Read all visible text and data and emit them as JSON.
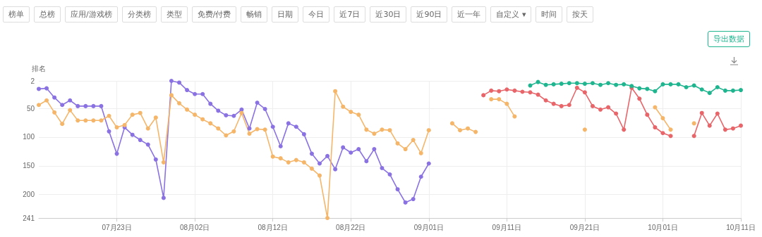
{
  "chart_data": {
    "type": "line",
    "ylabel": "排名",
    "annotations": [
      "榜单",
      "总榜",
      "应用/游戏榜",
      "分类榜",
      "类型",
      "免费/付费",
      "畅销",
      "日期",
      "今日",
      "近7日",
      "近30日",
      "近90日",
      "近一年",
      "自定义 ▾",
      "时间",
      "按天",
      "导出数据"
    ],
    "x": [
      "--07-13",
      "--07-14",
      "--07-15",
      "--07-16",
      "--07-17",
      "--07-18",
      "--07-19",
      "--07-20",
      "--07-21",
      "--07-22",
      "--07-23",
      "--07-24",
      "--07-25",
      "--07-26",
      "--07-27",
      "--07-28",
      "--07-29",
      "--07-30",
      "--07-31",
      "--08-01",
      "--08-02",
      "--08-03",
      "--08-04",
      "--08-05",
      "--08-06",
      "--08-07",
      "--08-08",
      "--08-09",
      "--08-10",
      "--08-11",
      "--08-12",
      "--08-13",
      "--08-14",
      "--08-15",
      "--08-16",
      "--08-17",
      "--08-18",
      "--08-19",
      "--08-20",
      "--08-21",
      "--08-22",
      "--08-23",
      "--08-24",
      "--08-25",
      "--08-26",
      "--08-27",
      "--08-28",
      "--08-29",
      "--08-30",
      "--08-31",
      "--09-01",
      "--09-02",
      "--09-03",
      "--09-04",
      "--09-05",
      "--09-06",
      "--09-07",
      "--09-08",
      "--09-09",
      "--09-10",
      "--09-11",
      "--09-12",
      "--09-13",
      "--09-14",
      "--09-15",
      "--09-16",
      "--09-17",
      "--09-18",
      "--09-19",
      "--09-20",
      "--09-21",
      "--09-22",
      "--09-23",
      "--09-24",
      "--09-25",
      "--09-26",
      "--09-27",
      "--09-28",
      "--09-29",
      "--09-30",
      "--10-01",
      "--10-02",
      "--10-03",
      "--10-04",
      "--10-05",
      "--10-06",
      "--10-07",
      "--10-08",
      "--10-09",
      "--10-10",
      "--10-11"
    ],
    "series": [
      {
        "color": "#8a72e3",
        "values": [
          16,
          15,
          31,
          44,
          36,
          46,
          46,
          46,
          46,
          90,
          129,
          83,
          96,
          105,
          113,
          139,
          206,
          2,
          5,
          18,
          25,
          25,
          42,
          54,
          62,
          63,
          52,
          85,
          40,
          51,
          82,
          116,
          76,
          82,
          95,
          129,
          146,
          133,
          156,
          118,
          127,
          121,
          142,
          121,
          154,
          165,
          191,
          214,
          208,
          169,
          146,
          null,
          null,
          null,
          null,
          null,
          null,
          null,
          null,
          null,
          null,
          null,
          null,
          null,
          null,
          null,
          null,
          null,
          null,
          null,
          null,
          null,
          null,
          null,
          null,
          null,
          null,
          null,
          null,
          null,
          null,
          null,
          null,
          null,
          null,
          null,
          null,
          null,
          null,
          null,
          null
        ]
      },
      {
        "color": "#f5b66a",
        "values": [
          44,
          36,
          57,
          77,
          53,
          71,
          71,
          71,
          71,
          63,
          83,
          79,
          61,
          58,
          85,
          66,
          144,
          27,
          41,
          52,
          61,
          69,
          76,
          85,
          97,
          90,
          58,
          94,
          86,
          87,
          134,
          137,
          144,
          140,
          144,
          155,
          167,
          241,
          20,
          47,
          56,
          61,
          87,
          94,
          87,
          88,
          111,
          121,
          105,
          128,
          88,
          null,
          null,
          76,
          88,
          85,
          91,
          null,
          34,
          34,
          42,
          64,
          null,
          null,
          null,
          null,
          null,
          null,
          null,
          null,
          87,
          null,
          null,
          null,
          null,
          null,
          null,
          null,
          null,
          48,
          67,
          87,
          null,
          null,
          76,
          null,
          null,
          null,
          null,
          null,
          null
        ]
      },
      {
        "color": "#e8656a",
        "values": [
          null,
          null,
          null,
          null,
          null,
          null,
          null,
          null,
          null,
          null,
          null,
          null,
          null,
          null,
          null,
          null,
          null,
          null,
          null,
          null,
          null,
          null,
          null,
          null,
          null,
          null,
          null,
          null,
          null,
          null,
          null,
          null,
          null,
          null,
          null,
          null,
          null,
          null,
          null,
          null,
          null,
          null,
          null,
          null,
          null,
          null,
          null,
          null,
          null,
          null,
          null,
          null,
          null,
          null,
          null,
          null,
          null,
          27,
          19,
          20,
          17,
          19,
          21,
          22,
          26,
          36,
          42,
          46,
          44,
          14,
          22,
          46,
          52,
          48,
          59,
          87,
          14,
          33,
          61,
          83,
          93,
          98,
          null,
          null,
          98,
          58,
          80,
          59,
          87,
          85,
          80
        ]
      },
      {
        "color": "#1fb58f",
        "values": [
          null,
          null,
          null,
          null,
          null,
          null,
          null,
          null,
          null,
          null,
          null,
          null,
          null,
          null,
          null,
          null,
          null,
          null,
          null,
          null,
          null,
          null,
          null,
          null,
          null,
          null,
          null,
          null,
          null,
          null,
          null,
          null,
          null,
          null,
          null,
          null,
          null,
          null,
          null,
          null,
          null,
          null,
          null,
          null,
          null,
          null,
          null,
          null,
          null,
          null,
          null,
          null,
          null,
          null,
          null,
          null,
          null,
          null,
          null,
          null,
          null,
          null,
          null,
          10,
          4,
          9,
          8,
          7,
          6,
          6,
          7,
          6,
          9,
          6,
          9,
          8,
          11,
          15,
          16,
          20,
          8,
          8,
          8,
          13,
          10,
          17,
          23,
          13,
          19,
          19,
          18
        ]
      }
    ],
    "xlim": [
      "--07-13",
      "--10-11"
    ],
    "xticks": [
      {
        "value": "--07-23",
        "label": "07月23日"
      },
      {
        "value": "--08-02",
        "label": "08月02日"
      },
      {
        "value": "--08-12",
        "label": "08月12日"
      },
      {
        "value": "--08-22",
        "label": "08月22日"
      },
      {
        "value": "--09-01",
        "label": "09月01日"
      },
      {
        "value": "--09-11",
        "label": "09月11日"
      },
      {
        "value": "--09-21",
        "label": "09月21日"
      },
      {
        "value": "--10-01",
        "label": "10月01日"
      },
      {
        "value": "--10-11",
        "label": "10月11日"
      }
    ],
    "ylim": [
      241,
      2
    ],
    "yticks": [
      2,
      50,
      100,
      150,
      200,
      241
    ],
    "grid": true,
    "marker": "circle",
    "line_style": "solid"
  }
}
